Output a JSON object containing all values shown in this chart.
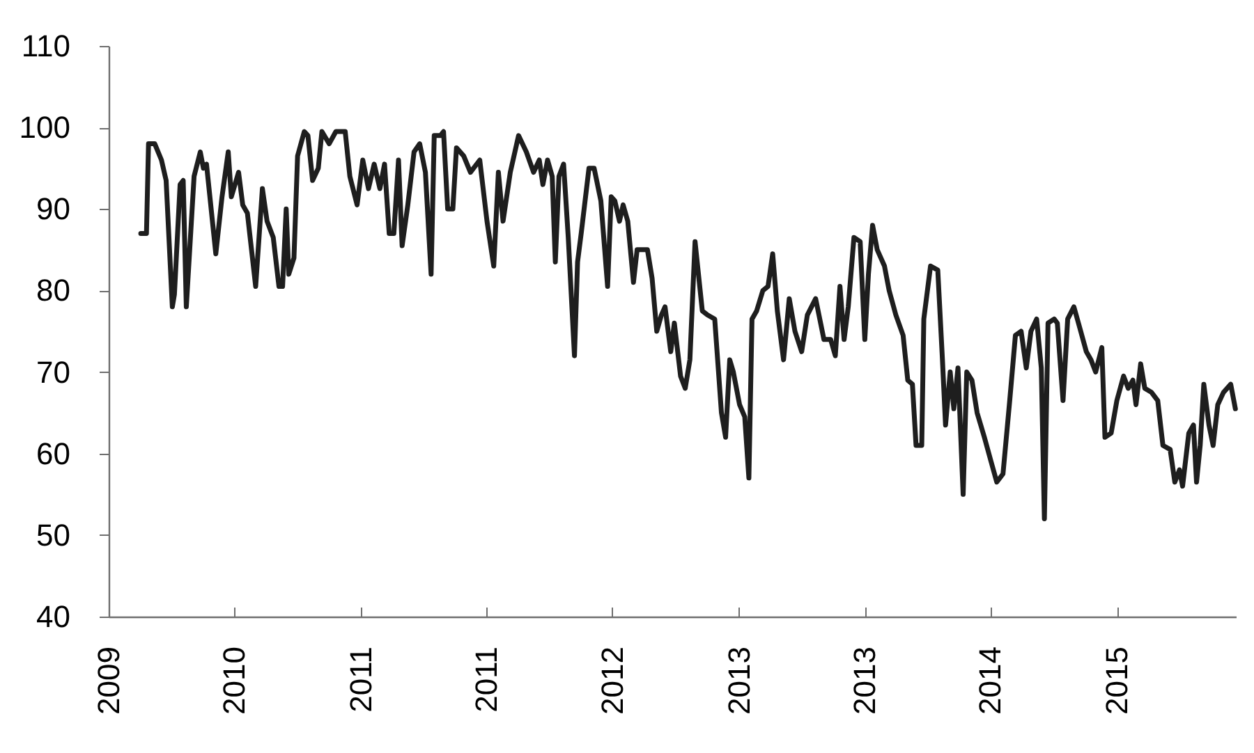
{
  "chart_data": {
    "type": "line",
    "color": "#1e1e1e",
    "line_style": "solid",
    "xlim": [
      "2009-09-01",
      "2015-08-19"
    ],
    "ylim": [
      40,
      110
    ],
    "xticks": [
      {
        "value": "2009-09-01",
        "label": "2009"
      },
      {
        "value": "2010-05-01",
        "label": "2010"
      },
      {
        "value": "2011-01-01",
        "label": "2011"
      },
      {
        "value": "2011-09-01",
        "label": "2011"
      },
      {
        "value": "2012-05-01",
        "label": "2012"
      },
      {
        "value": "2013-01-01",
        "label": "2013"
      },
      {
        "value": "2013-09-01",
        "label": "2013"
      },
      {
        "value": "2014-05-01",
        "label": "2014"
      },
      {
        "value": "2015-01-01",
        "label": "2015"
      }
    ],
    "yticks": [
      40,
      50,
      60,
      70,
      80,
      90,
      100,
      110
    ],
    "x": [
      "2009-11-02",
      "2009-11-13",
      "2009-11-17",
      "2009-11-29",
      "2009-12-12",
      "2009-12-21",
      "2010-01-02",
      "2010-01-06",
      "2010-01-17",
      "2010-01-23",
      "2010-01-29",
      "2010-02-13",
      "2010-02-25",
      "2010-03-03",
      "2010-03-09",
      "2010-03-27",
      "2010-04-08",
      "2010-04-20",
      "2010-04-26",
      "2010-05-10",
      "2010-05-18",
      "2010-05-27",
      "2010-06-12",
      "2010-06-25",
      "2010-07-04",
      "2010-07-16",
      "2010-07-27",
      "2010-08-03",
      "2010-08-10",
      "2010-08-15",
      "2010-08-25",
      "2010-09-01",
      "2010-09-14",
      "2010-09-21",
      "2010-09-30",
      "2010-10-11",
      "2010-10-18",
      "2010-11-01",
      "2010-11-14",
      "2010-12-02",
      "2010-12-11",
      "2010-12-25",
      "2011-01-05",
      "2011-01-16",
      "2011-01-27",
      "2011-02-07",
      "2011-02-16",
      "2011-02-25",
      "2011-03-06",
      "2011-03-15",
      "2011-03-22",
      "2011-04-02",
      "2011-04-14",
      "2011-04-25",
      "2011-05-06",
      "2011-05-17",
      "2011-05-23",
      "2011-06-04",
      "2011-06-10",
      "2011-06-18",
      "2011-06-28",
      "2011-07-05",
      "2011-07-19",
      "2011-08-01",
      "2011-08-19",
      "2011-09-02",
      "2011-09-15",
      "2011-09-24",
      "2011-10-03",
      "2011-10-17",
      "2011-11-02",
      "2011-11-17",
      "2011-12-01",
      "2011-12-12",
      "2011-12-19",
      "2011-12-28",
      "2012-01-06",
      "2012-01-12",
      "2012-01-19",
      "2012-01-28",
      "2012-02-06",
      "2012-02-18",
      "2012-02-24",
      "2012-03-02",
      "2012-03-17",
      "2012-03-27",
      "2012-04-09",
      "2012-04-22",
      "2012-04-29",
      "2012-05-06",
      "2012-05-15",
      "2012-05-22",
      "2012-05-31",
      "2012-06-11",
      "2012-06-18",
      "2012-07-08",
      "2012-07-17",
      "2012-07-26",
      "2012-08-04",
      "2012-08-11",
      "2012-08-22",
      "2012-08-29",
      "2012-09-10",
      "2012-09-19",
      "2012-09-28",
      "2012-10-08",
      "2012-10-22",
      "2012-11-01",
      "2012-11-15",
      "2012-11-28",
      "2012-12-06",
      "2012-12-14",
      "2012-12-21",
      "2013-01-02",
      "2013-01-12",
      "2013-01-20",
      "2013-01-26",
      "2013-02-04",
      "2013-02-16",
      "2013-02-26",
      "2013-03-07",
      "2013-03-16",
      "2013-03-28",
      "2013-04-08",
      "2013-04-19",
      "2013-05-02",
      "2013-05-13",
      "2013-05-29",
      "2013-06-14",
      "2013-06-27",
      "2013-07-06",
      "2013-07-15",
      "2013-07-23",
      "2013-07-31",
      "2013-08-11",
      "2013-08-23",
      "2013-09-01",
      "2013-09-08",
      "2013-09-16",
      "2013-09-25",
      "2013-10-09",
      "2013-10-18",
      "2013-10-31",
      "2013-11-14",
      "2013-11-23",
      "2013-12-02",
      "2013-12-09",
      "2013-12-20",
      "2013-12-24",
      "2014-01-06",
      "2014-01-20",
      "2014-01-29",
      "2014-02-04",
      "2014-02-13",
      "2014-02-20",
      "2014-02-28",
      "2014-03-10",
      "2014-03-17",
      "2014-03-27",
      "2014-04-06",
      "2014-04-20",
      "2014-05-03",
      "2014-05-14",
      "2014-05-26",
      "2014-06-08",
      "2014-06-19",
      "2014-06-30",
      "2014-07-10",
      "2014-07-19",
      "2014-07-30",
      "2014-08-08",
      "2014-08-14",
      "2014-08-21",
      "2014-09-02",
      "2014-09-08",
      "2014-09-19",
      "2014-09-28",
      "2014-10-10",
      "2014-10-21",
      "2014-11-03",
      "2014-11-12",
      "2014-11-21",
      "2014-12-03",
      "2014-12-09",
      "2014-12-21",
      "2015-01-01",
      "2015-01-14",
      "2015-01-23",
      "2015-02-01",
      "2015-02-07",
      "2015-02-16",
      "2015-02-24",
      "2015-03-09",
      "2015-03-21",
      "2015-03-31",
      "2015-04-14",
      "2015-04-23",
      "2015-05-02",
      "2015-05-08",
      "2015-05-20",
      "2015-05-29",
      "2015-06-04",
      "2015-06-11",
      "2015-06-18",
      "2015-06-28",
      "2015-07-06",
      "2015-07-15",
      "2015-07-26",
      "2015-08-09",
      "2015-08-18"
    ],
    "values": [
      87,
      87,
      98,
      98,
      96,
      93.5,
      78,
      79.5,
      93,
      93.5,
      78,
      94,
      97,
      95,
      95.5,
      84.5,
      91.5,
      97,
      91.5,
      94.5,
      90.5,
      89.5,
      80.5,
      92.5,
      88.5,
      86.5,
      80.5,
      80.5,
      90,
      82,
      84,
      96.5,
      99.5,
      99,
      93.5,
      95,
      99.5,
      98,
      99.5,
      99.5,
      94,
      90.5,
      96,
      92.5,
      95.5,
      92.5,
      95.5,
      87,
      87,
      96,
      85.5,
      90.5,
      97,
      98,
      94.5,
      82,
      99,
      99,
      99.5,
      90,
      90,
      97.5,
      96.5,
      94.5,
      96,
      88.5,
      83,
      94.5,
      88.5,
      94.5,
      99,
      97,
      94.5,
      96,
      93,
      96,
      94,
      83.5,
      94,
      95.5,
      86.5,
      72,
      83.5,
      87,
      95,
      95,
      91,
      80.5,
      91.5,
      91,
      88.5,
      90.5,
      88.5,
      81,
      85,
      85,
      81.5,
      75,
      77,
      78,
      72.5,
      76,
      69.5,
      68,
      71.5,
      86,
      77.5,
      77,
      76.5,
      65,
      62,
      71.5,
      70,
      66,
      64.5,
      57,
      76.5,
      77.5,
      80,
      80.5,
      84.5,
      77.5,
      71.5,
      79,
      75,
      72.5,
      77,
      79,
      74,
      74,
      72,
      80.5,
      74,
      78,
      86.5,
      86,
      74,
      82,
      88,
      85,
      83,
      80,
      77,
      74.5,
      69,
      68.5,
      61,
      61,
      76.5,
      83,
      82.5,
      71.5,
      63.5,
      70,
      65.5,
      70.5,
      55,
      70,
      69,
      65,
      62,
      59,
      56.5,
      57.5,
      66.5,
      74.5,
      75,
      70.5,
      75,
      76.5,
      70.5,
      52,
      76,
      76.5,
      76,
      66.5,
      76.5,
      78,
      75.5,
      72.5,
      71.5,
      70,
      73,
      62,
      62.5,
      66.5,
      69.5,
      68,
      69,
      66,
      71,
      68,
      67.5,
      66.5,
      61,
      60.5,
      56.5,
      58,
      56,
      62.5,
      63.5,
      56.5,
      61,
      68.5,
      63.5,
      61,
      66,
      67.5,
      68.5,
      65.5
    ]
  }
}
